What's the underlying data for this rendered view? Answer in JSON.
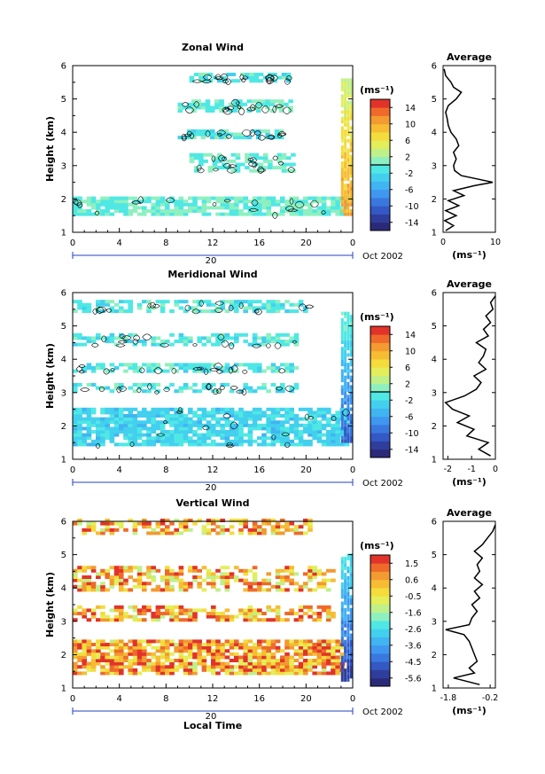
{
  "charts": [
    {
      "id": "zonal",
      "title": "Zonal Wind",
      "ylabel": "Height (km)",
      "x_ticks": [
        "0",
        "4",
        "8",
        "12",
        "16",
        "20",
        "0"
      ],
      "x_under": "20",
      "month_label": "Oct 2002",
      "colorbar": {
        "unit": "(ms⁻¹)",
        "ticks": [
          "14",
          "10",
          "6",
          "2",
          "-2",
          "-6",
          "-10",
          "-14"
        ]
      },
      "avg": {
        "title": "Average",
        "x_ticks": [
          "0",
          "10"
        ],
        "xlabel": "(ms⁻¹)"
      }
    },
    {
      "id": "meridional",
      "title": "Meridional Wind",
      "ylabel": "Height (km)",
      "x_ticks": [
        "0",
        "4",
        "8",
        "12",
        "16",
        "20",
        "0"
      ],
      "x_under": "20",
      "month_label": "Oct 2002",
      "colorbar": {
        "unit": "(ms⁻¹)",
        "ticks": [
          "14",
          "10",
          "6",
          "2",
          "-2",
          "-6",
          "-10",
          "-14"
        ]
      },
      "avg": {
        "title": "Average",
        "x_ticks": [
          "-2",
          "-1",
          "0"
        ],
        "xlabel": "(ms⁻¹)"
      }
    },
    {
      "id": "vertical",
      "title": "Vertical Wind",
      "ylabel": "Height (km)",
      "x_ticks": [
        "0",
        "4",
        "8",
        "12",
        "16",
        "20",
        "0"
      ],
      "x_under": "20",
      "month_label": "Oct 2002",
      "xlabel": "Local Time",
      "colorbar": {
        "unit": "(ms⁻¹)",
        "ticks": [
          "1.5",
          "0.6",
          "-0.5",
          "-1.6",
          "-2.6",
          "-3.6",
          "-4.5",
          "-5.6"
        ]
      },
      "avg": {
        "title": "Average",
        "x_ticks": [
          "-1.8",
          "-0.2"
        ],
        "xlabel": "(ms⁻¹)"
      }
    }
  ],
  "y_ticks": [
    "1",
    "2",
    "3",
    "4",
    "5",
    "6"
  ],
  "colormap": [
    "#2b2a78",
    "#2f3e9c",
    "#3458c4",
    "#3a78e0",
    "#3f97ef",
    "#41b4f2",
    "#43d0ee",
    "#4fe8e4",
    "#8ef0c0",
    "#bff08a",
    "#e4ee5a",
    "#f4dc3c",
    "#f6bc34",
    "#f39a30",
    "#ef6a2a",
    "#e2332a"
  ],
  "chart_data": [
    {
      "type": "heatmap",
      "title": "Zonal Wind",
      "ylabel": "Height (km)",
      "xlim_local_time_h": [
        0,
        24
      ],
      "ylim_km": [
        1,
        6
      ],
      "clim": [
        -16,
        16
      ],
      "colorbar_ticks": [
        14,
        10,
        6,
        2,
        -2,
        -6,
        -10,
        -14
      ],
      "zero_contour": true,
      "layers": [
        {
          "y": [
            1.5,
            2.0
          ],
          "x": [
            0,
            23.5
          ],
          "level": 0.0,
          "note_values": "mostly weak with patches up to ~6"
        },
        {
          "y": [
            2.8,
            3.3
          ],
          "x": [
            10,
            19
          ],
          "level": 0.0
        },
        {
          "y": [
            3.8,
            4.0
          ],
          "x": [
            9,
            18
          ],
          "level": -1.0
        },
        {
          "y": [
            4.6,
            4.9
          ],
          "x": [
            9,
            18.5
          ],
          "level": 0.0
        },
        {
          "y": [
            5.5,
            5.7
          ],
          "x": [
            10,
            18.5
          ],
          "level": -1.0
        }
      ],
      "sunrise_column": {
        "x": [
          23.0,
          24.0
        ],
        "y": [
          1.5,
          5.6
        ],
        "value_range": [
          2,
          12
        ]
      },
      "average_profile": {
        "xlim": [
          0,
          10
        ],
        "x_ticks": [
          0,
          10
        ],
        "xlabel": "(ms⁻¹)",
        "height_km": [
          1.05,
          1.2,
          1.35,
          1.5,
          1.65,
          1.8,
          1.95,
          2.1,
          2.25,
          2.4,
          2.5,
          2.6,
          2.7,
          2.85,
          3.0,
          3.2,
          3.4,
          3.6,
          3.8,
          4.0,
          4.2,
          4.4,
          4.6,
          4.8,
          5.0,
          5.2,
          5.35,
          5.5,
          5.7,
          5.9
        ],
        "value": [
          0.5,
          2.0,
          0.3,
          2.5,
          0.5,
          3.0,
          1.0,
          4.0,
          2.0,
          6.0,
          9.5,
          6.5,
          3.5,
          2.2,
          2.0,
          2.5,
          2.0,
          3.0,
          2.5,
          1.5,
          1.0,
          0.8,
          0.5,
          1.0,
          2.5,
          3.5,
          2.0,
          1.5,
          0.5,
          0.2
        ]
      }
    },
    {
      "type": "heatmap",
      "title": "Meridional Wind",
      "ylabel": "Height (km)",
      "xlim_local_time_h": [
        0,
        24
      ],
      "ylim_km": [
        1,
        6
      ],
      "clim": [
        -16,
        16
      ],
      "colorbar_ticks": [
        14,
        10,
        6,
        2,
        -2,
        -6,
        -10,
        -14
      ],
      "zero_contour": true,
      "layers": [
        {
          "y": [
            1.4,
            2.5
          ],
          "x": [
            0,
            23.5
          ],
          "level": -2.5
        },
        {
          "y": [
            3.0,
            3.2
          ],
          "x": [
            0,
            19
          ],
          "level": -1.0
        },
        {
          "y": [
            3.6,
            3.8
          ],
          "x": [
            0,
            19
          ],
          "level": -1.0
        },
        {
          "y": [
            4.4,
            4.7
          ],
          "x": [
            0,
            19
          ],
          "level": -1.0
        },
        {
          "y": [
            5.4,
            5.7
          ],
          "x": [
            0,
            20
          ],
          "level": -1.0
        }
      ],
      "sunrise_column": {
        "x": [
          23.0,
          24.0
        ],
        "y": [
          1.5,
          5.4
        ],
        "value_range": [
          -12,
          2
        ]
      },
      "average_profile": {
        "xlim": [
          -2.2,
          0
        ],
        "x_ticks": [
          -2,
          -1,
          0
        ],
        "xlabel": "(ms⁻¹)",
        "height_km": [
          1.1,
          1.3,
          1.5,
          1.7,
          1.9,
          2.1,
          2.3,
          2.5,
          2.7,
          2.9,
          3.1,
          3.3,
          3.5,
          3.7,
          3.9,
          4.1,
          4.3,
          4.5,
          4.7,
          4.9,
          5.1,
          5.3,
          5.5,
          5.7,
          5.9
        ],
        "value": [
          -0.2,
          -0.7,
          -0.3,
          -1.2,
          -0.9,
          -1.6,
          -1.1,
          -1.8,
          -2.1,
          -1.3,
          -0.8,
          -0.6,
          -0.9,
          -0.4,
          -0.7,
          -0.5,
          -0.4,
          -0.8,
          -0.3,
          -0.5,
          -0.2,
          -0.4,
          -0.1,
          -0.2,
          0.0
        ]
      }
    },
    {
      "type": "heatmap",
      "title": "Vertical Wind",
      "ylabel": "Height (km)",
      "xlabel": "Local Time",
      "xlim_local_time_h": [
        0,
        24
      ],
      "ylim_km": [
        1,
        6
      ],
      "clim": [
        -6.1,
        2.0
      ],
      "colorbar_ticks": [
        1.5,
        0.6,
        -0.5,
        -1.6,
        -2.6,
        -3.6,
        -4.5,
        -5.6
      ],
      "zero_contour": false,
      "layers": [
        {
          "y": [
            1.4,
            2.4
          ],
          "x": [
            0,
            23.0
          ],
          "level": 0.6
        },
        {
          "y": [
            3.0,
            3.4
          ],
          "x": [
            0,
            22.5
          ],
          "level": 0.3
        },
        {
          "y": [
            3.9,
            4.6
          ],
          "x": [
            0,
            22.5
          ],
          "level": 0.3
        },
        {
          "y": [
            5.6,
            6.0
          ],
          "x": [
            0,
            20.5
          ],
          "level": 0.3
        }
      ],
      "sunrise_column": {
        "x": [
          23.0,
          24.0
        ],
        "y": [
          1.2,
          5.0
        ],
        "value_range": [
          -5.6,
          -2.0
        ]
      },
      "average_profile": {
        "xlim": [
          -2.0,
          0.0
        ],
        "x_ticks": [
          -1.8,
          -0.2
        ],
        "xlabel": "(ms⁻¹)",
        "height_km": [
          1.1,
          1.3,
          1.45,
          1.6,
          1.8,
          2.0,
          2.2,
          2.4,
          2.6,
          2.75,
          2.9,
          3.1,
          3.3,
          3.5,
          3.7,
          3.9,
          4.1,
          4.3,
          4.5,
          4.7,
          4.9,
          5.1,
          5.3,
          5.5,
          5.7,
          5.9
        ],
        "value": [
          -0.6,
          -1.6,
          -0.8,
          -1.0,
          -0.7,
          -0.8,
          -0.9,
          -1.0,
          -1.2,
          -1.9,
          -1.0,
          -0.9,
          -0.7,
          -0.9,
          -0.6,
          -0.8,
          -0.5,
          -0.8,
          -0.6,
          -0.7,
          -0.5,
          -0.8,
          -0.5,
          -0.3,
          -0.1,
          0.0
        ]
      }
    }
  ]
}
